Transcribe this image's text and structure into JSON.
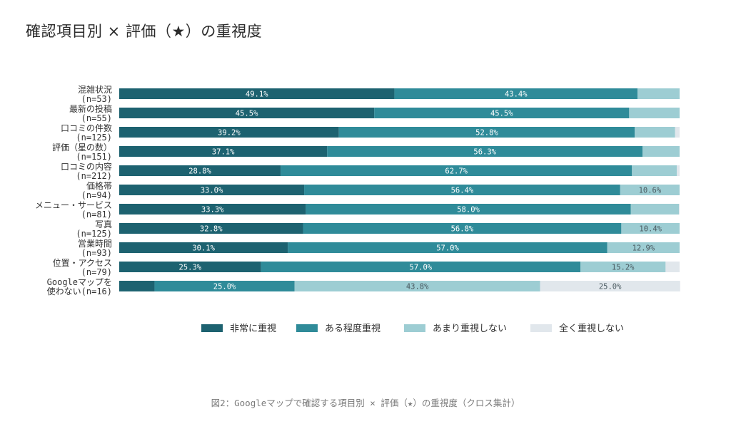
{
  "title": "確認項目別 × 評価（★）の重視度",
  "caption": "図2：Googleマップで確認する項目別 × 評価（★）の重視度（クロス集計）",
  "colors": {
    "非常に重視": "#1d6270",
    "ある程度重視": "#2f8b99",
    "あまり重視しない": "#9dcdd3",
    "全く重視しない": "#e1e7ec"
  },
  "chart_data": {
    "type": "bar",
    "orientation": "horizontal",
    "stacked": true,
    "percent": true,
    "legend_position": "bottom",
    "categories": [
      [
        "混雑状況",
        "(n=53)"
      ],
      [
        "最新の投稿",
        "(n=55)"
      ],
      [
        "口コミの件数",
        "(n=125)"
      ],
      [
        "評価（星の数）",
        "(n=151)"
      ],
      [
        "口コミの内容",
        "(n=212)"
      ],
      [
        "価格帯",
        "(n=94)"
      ],
      [
        "メニュー・サービス",
        "(n=81)"
      ],
      [
        "写真",
        "(n=125)"
      ],
      [
        "営業時間",
        "(n=93)"
      ],
      [
        "位置・アクセス",
        "(n=79)"
      ],
      [
        "Googleマップを",
        "使わない(n=16)"
      ]
    ],
    "series": [
      {
        "name": "非常に重視",
        "values": [
          49.1,
          45.5,
          39.2,
          37.1,
          28.8,
          33.0,
          33.3,
          32.8,
          30.1,
          25.3,
          6.3
        ],
        "labels": [
          "49.1%",
          "45.5%",
          "39.2%",
          "37.1%",
          "28.8%",
          "33.0%",
          "33.3%",
          "32.8%",
          "30.1%",
          "25.3%",
          ""
        ]
      },
      {
        "name": "ある程度重視",
        "values": [
          43.4,
          45.5,
          52.8,
          56.3,
          62.7,
          56.4,
          58.0,
          56.8,
          57.0,
          57.0,
          25.0
        ],
        "labels": [
          "43.4%",
          "45.5%",
          "52.8%",
          "56.3%",
          "62.7%",
          "56.4%",
          "58.0%",
          "56.8%",
          "57.0%",
          "57.0%",
          "25.0%"
        ]
      },
      {
        "name": "あまり重視しない",
        "values": [
          7.5,
          9.0,
          7.2,
          6.6,
          8.0,
          10.6,
          8.6,
          10.4,
          12.9,
          15.2,
          43.8
        ],
        "labels": [
          "",
          "",
          "",
          "",
          "",
          "10.6%",
          "",
          "10.4%",
          "12.9%",
          "15.2%",
          "43.8%"
        ]
      },
      {
        "name": "全く重視しない",
        "values": [
          0.0,
          0.0,
          0.8,
          0.0,
          0.5,
          0.0,
          0.1,
          0.0,
          0.0,
          2.5,
          25.0
        ],
        "labels": [
          "",
          "",
          "",
          "",
          "",
          "",
          "",
          "",
          "",
          "",
          "25.0%"
        ]
      }
    ],
    "xlim": [
      0,
      100
    ]
  }
}
